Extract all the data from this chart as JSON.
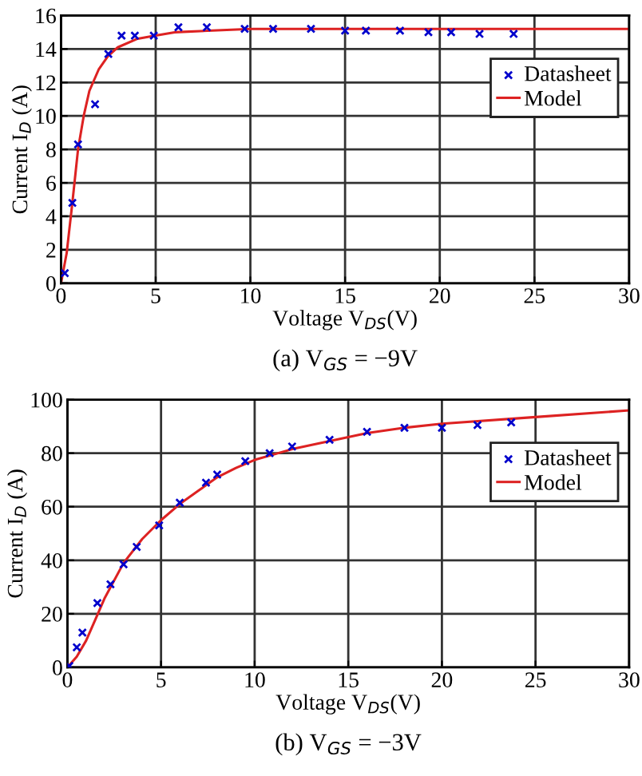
{
  "chart_data": [
    {
      "type": "scatter",
      "title": "(a) V$_{GS}$ = −9V",
      "xlabel": "Voltage V$_{DS}$(V)",
      "ylabel": "Current I$_{D}$ (A)",
      "xlim": [
        0,
        30
      ],
      "xticks": [
        0,
        5,
        10,
        15,
        20,
        25,
        30
      ],
      "ylim": [
        0,
        16
      ],
      "yticks": [
        0,
        2,
        4,
        6,
        8,
        10,
        12,
        14,
        16
      ],
      "grid": true,
      "legend": "top right",
      "series": [
        {
          "name": "Datasheet",
          "marker": "cross",
          "color": "#0000cc",
          "x": [
            0.2,
            0.6,
            0.9,
            1.8,
            2.5,
            3.2,
            3.9,
            4.9,
            6.2,
            7.7,
            9.7,
            11.2,
            13.2,
            15,
            16.1,
            17.9,
            19.4,
            20.6,
            22.1,
            23.9
          ],
          "values": [
            0.6,
            4.8,
            8.3,
            10.7,
            13.7,
            14.8,
            14.8,
            14.8,
            15.3,
            15.3,
            15.2,
            15.2,
            15.2,
            15.1,
            15.1,
            15.1,
            15.0,
            15.0,
            14.9,
            14.9
          ]
        },
        {
          "name": "Model",
          "type": "line",
          "line_style": "solid",
          "color": "#dd2222",
          "x": [
            0,
            0.3,
            0.6,
            0.9,
            1.2,
            1.5,
            2,
            2.5,
            3,
            4,
            5,
            6,
            8,
            10,
            15,
            20,
            30
          ],
          "values": [
            0,
            1.8,
            4.8,
            8,
            10,
            11.5,
            12.8,
            13.6,
            14.1,
            14.6,
            14.8,
            15.0,
            15.1,
            15.2,
            15.2,
            15.2,
            15.2
          ]
        }
      ]
    },
    {
      "type": "scatter",
      "title": "(b) V$_{GS}$ = −3V",
      "xlabel": "Voltage V$_{DS}$(V)",
      "ylabel": "Current I$_{D}$ (A)",
      "xlim": [
        0,
        30
      ],
      "xticks": [
        0,
        5,
        10,
        15,
        20,
        25,
        30
      ],
      "ylim": [
        0,
        100
      ],
      "yticks": [
        0,
        20,
        40,
        60,
        80,
        100
      ],
      "grid": true,
      "legend": "top right",
      "series": [
        {
          "name": "Datasheet",
          "marker": "cross",
          "color": "#0000cc",
          "x": [
            0.1,
            0.5,
            0.8,
            1.6,
            2.3,
            3.0,
            3.7,
            4.9,
            6.0,
            7.4,
            8.0,
            9.5,
            10.8,
            12.0,
            14.0,
            16.0,
            18.0,
            20.0,
            21.9,
            23.7
          ],
          "values": [
            0.5,
            7.5,
            13,
            24,
            31,
            38.5,
            45,
            53,
            61.5,
            69,
            72,
            77,
            80,
            82.5,
            85,
            88,
            89.5,
            89.5,
            90.5,
            91.5
          ]
        },
        {
          "name": "Model",
          "type": "line",
          "line_style": "solid",
          "color": "#dd2222",
          "x": [
            0,
            0.5,
            1,
            1.5,
            2,
            3,
            4,
            5,
            6,
            7,
            8,
            9,
            10,
            12,
            14,
            16,
            18,
            20,
            25,
            30
          ],
          "values": [
            0,
            4,
            10,
            18,
            26,
            39,
            48,
            55,
            61,
            66,
            71,
            74.5,
            77.5,
            81.5,
            84.5,
            87.5,
            89.5,
            91,
            93.5,
            96
          ]
        }
      ]
    }
  ]
}
